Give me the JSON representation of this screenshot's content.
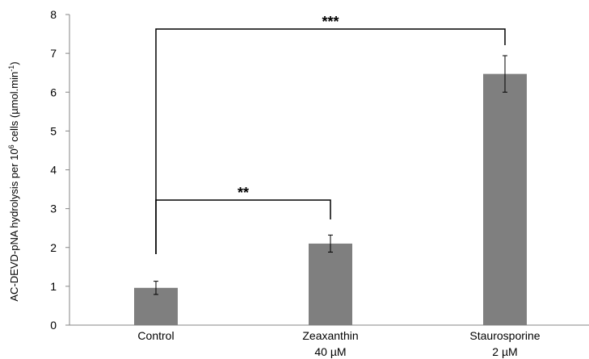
{
  "chart_data": {
    "type": "bar",
    "ylabel": "AC-DEVD-pNA hydrolysis per 10",
    "ylabel_superscript": "6",
    "ylabel_suffix": " cells (µmol.min",
    "ylabel_superscript2": "-1",
    "ylabel_end": ")",
    "ylim": [
      0,
      8
    ],
    "yticks": [
      "0",
      "1",
      "2",
      "3",
      "4",
      "5",
      "6",
      "7",
      "8"
    ],
    "categories": [
      {
        "line1": "Control",
        "line2": ""
      },
      {
        "line1": "Zeaxanthin",
        "line2": "40 µM"
      },
      {
        "line1": "Staurosporine",
        "line2": "2 µM"
      }
    ],
    "values": [
      0.96,
      2.1,
      6.47
    ],
    "errors": [
      0.17,
      0.22,
      0.47
    ],
    "bar_color": "#7f7f7f",
    "significance": [
      {
        "from": 0,
        "to": 1,
        "label": "**"
      },
      {
        "from": 0,
        "to": 2,
        "label": "***"
      }
    ]
  }
}
